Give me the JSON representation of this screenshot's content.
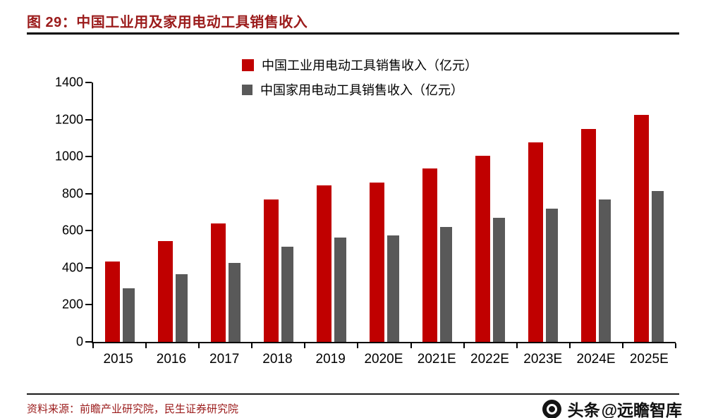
{
  "header": {
    "title": "图 29：中国工业用及家用电动工具销售收入"
  },
  "colors": {
    "accent": "#9B1B1B",
    "industrial_red": "#C00000",
    "household_gray": "#595959",
    "axis_black": "#000000"
  },
  "chart_data": {
    "type": "bar",
    "title": "中国工业用及家用电动工具销售收入",
    "categories": [
      "2015",
      "2016",
      "2017",
      "2018",
      "2019",
      "2020E",
      "2021E",
      "2022E",
      "2023E",
      "2024E",
      "2025E"
    ],
    "series": [
      {
        "name": "中国工业用电动工具销售收入（亿元）",
        "color": "#C00000",
        "values": [
          435,
          545,
          640,
          770,
          845,
          860,
          935,
          1005,
          1075,
          1150,
          1225
        ]
      },
      {
        "name": "中国家用电动工具销售收入（亿元）",
        "color": "#595959",
        "values": [
          290,
          365,
          425,
          515,
          565,
          575,
          620,
          670,
          720,
          770,
          815
        ]
      }
    ],
    "xlabel": "",
    "ylabel": "",
    "ylim": [
      0,
      1400
    ],
    "yticks": [
      0,
      200,
      400,
      600,
      800,
      1000,
      1200,
      1400
    ],
    "grid": false,
    "legend_position": "top"
  },
  "footer": {
    "source": "资料来源：前瞻产业研究院，民生证券研究院",
    "platform": "头条",
    "handle": "@远瞻智库"
  }
}
